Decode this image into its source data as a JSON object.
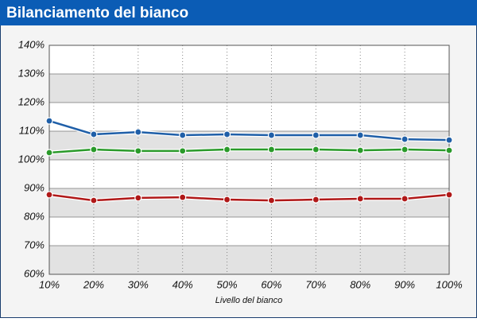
{
  "chart_data": {
    "type": "line",
    "title": "Bilanciamento del bianco",
    "x_label": "Livello del bianco",
    "categories": [
      "10%",
      "20%",
      "30%",
      "40%",
      "50%",
      "60%",
      "70%",
      "80%",
      "90%",
      "100%"
    ],
    "series": [
      {
        "color": "#1f5fa8",
        "values": [
          113.6,
          108.9,
          109.7,
          108.6,
          108.9,
          108.6,
          108.6,
          108.6,
          107.2,
          106.9
        ]
      },
      {
        "color": "#2a9a2a",
        "values": [
          102.5,
          103.6,
          103.1,
          103.1,
          103.6,
          103.6,
          103.6,
          103.3,
          103.6,
          103.3
        ]
      },
      {
        "color": "#b01818",
        "values": [
          87.8,
          85.8,
          86.7,
          86.9,
          86.1,
          85.8,
          86.1,
          86.4,
          86.4,
          87.8
        ]
      }
    ],
    "ylim": [
      60,
      140
    ],
    "yticks": [
      {
        "value": 60,
        "label": "60%"
      },
      {
        "value": 70,
        "label": "70%"
      },
      {
        "value": 80,
        "label": "80%"
      },
      {
        "value": 90,
        "label": "90%"
      },
      {
        "value": 100,
        "label": "100%"
      },
      {
        "value": 110,
        "label": "110%"
      },
      {
        "value": 120,
        "label": "120%"
      },
      {
        "value": 130,
        "label": "130%"
      },
      {
        "value": 140,
        "label": "140%"
      }
    ],
    "grid": true
  }
}
